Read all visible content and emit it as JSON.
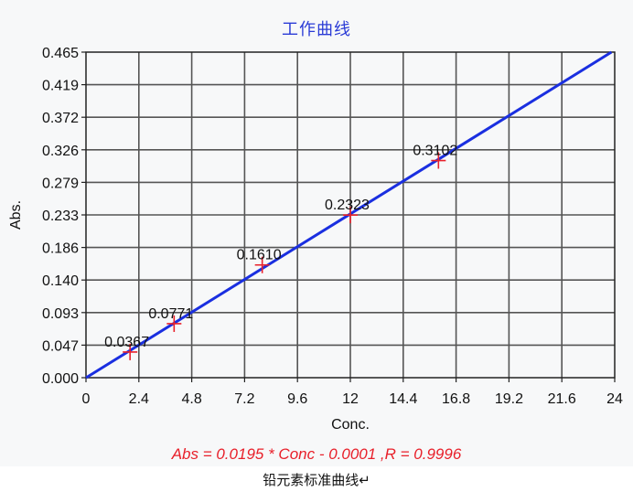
{
  "chart_data": {
    "type": "scatter",
    "title": "工作曲线",
    "xlabel": "Conc.",
    "ylabel": "Abs.",
    "xlim": [
      0,
      24
    ],
    "ylim": [
      0,
      0.465
    ],
    "x_ticks": [
      "0",
      "2.4",
      "4.8",
      "7.2",
      "9.6",
      "12",
      "14.4",
      "16.8",
      "19.2",
      "21.6",
      "24"
    ],
    "y_ticks": [
      "0.000",
      "0.047",
      "0.093",
      "0.140",
      "0.186",
      "0.233",
      "0.279",
      "0.326",
      "0.372",
      "0.419",
      "0.465"
    ],
    "grid": true,
    "points": [
      {
        "x": 2,
        "y": 0.0367,
        "label": "0.0367"
      },
      {
        "x": 4,
        "y": 0.0771,
        "label": "0.0771"
      },
      {
        "x": 8,
        "y": 0.161,
        "label": "0.1610"
      },
      {
        "x": 12,
        "y": 0.2323,
        "label": "0.2323"
      },
      {
        "x": 16,
        "y": 0.3102,
        "label": "0.3102"
      }
    ],
    "fit": {
      "slope": 0.0195,
      "intercept": -0.0001
    },
    "equation": "Abs = 0.0195 * Conc - 0.0001  ,R = 0.9996",
    "colors": {
      "line": "#1a2fe0",
      "marker": "#e8202a",
      "title": "#2a3bd6",
      "equation": "#e8202a"
    }
  },
  "caption": "铅元素标准曲线↵"
}
